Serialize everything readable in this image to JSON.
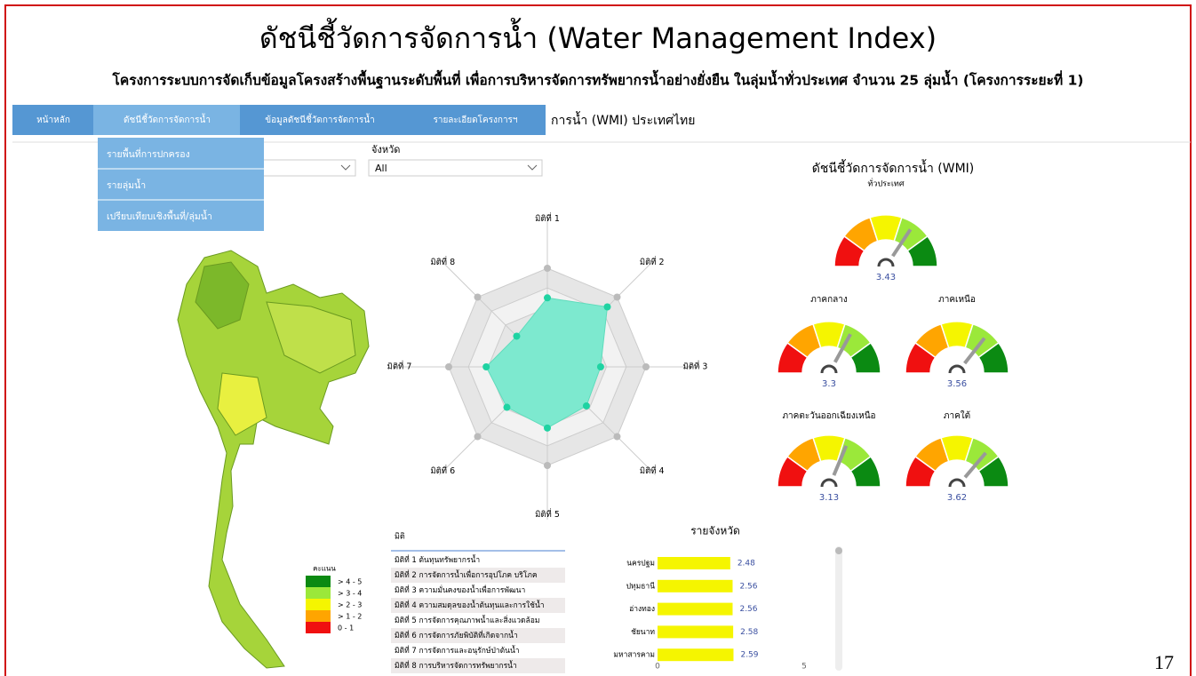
{
  "header": {
    "title": "ดัชนีชี้วัดการจัดการน้ำ (Water Management Index)",
    "subtitle": "โครงการระบบการจัดเก็บข้อมูลโครงสร้างพื้นฐานระดับพื้นที่ เพื่อการบริหารจัดการทรัพยากรน้ำอย่างยั่งยืน ในลุ่มน้ำทั่วประเทศ จำนวน 25 ลุ่มน้ำ (โครงการระยะที่ 1)"
  },
  "nav": {
    "items": [
      "หน้าหลัก",
      "ดัชนีชี้วัดการจัดการน้ำ",
      "ข้อมูลดัชนีชี้วัดการจัดการน้ำ",
      "รายละเอียดโครงการฯ"
    ],
    "dropdown": [
      "รายพื้นที่การปกครอง",
      "รายลุ่มน้ำ",
      "เปรียบเทียบเชิงพื้นที่/ลุ่มน้ำ"
    ],
    "page_title": "การน้ำ (WMI) ประเทศไทย"
  },
  "filter": {
    "label": "จังหวัด",
    "value": "All"
  },
  "map_legend": {
    "title": "คะแนน",
    "items": [
      {
        "label": "> 4 - 5",
        "color": "#0b8a12"
      },
      {
        "label": "> 3 - 4",
        "color": "#9be83a"
      },
      {
        "label": "> 2 - 3",
        "color": "#f5f500"
      },
      {
        "label": "> 1 - 2",
        "color": "#ffa500"
      },
      {
        "label": "0 - 1",
        "color": "#f01010"
      }
    ]
  },
  "radar": {
    "type": "radar",
    "categories": [
      "มิติที่ 1",
      "มิติที่ 2",
      "มิติที่ 3",
      "มิติที่ 4",
      "มิติที่ 5",
      "มิติที่ 6",
      "มิติที่ 7",
      "มิติที่ 8"
    ],
    "values": [
      3.5,
      4.3,
      2.7,
      2.8,
      3.1,
      2.9,
      3.1,
      2.2
    ],
    "rlim": [
      0,
      5
    ],
    "color": "#7de9cf"
  },
  "gauges": {
    "type": "gauge",
    "title": "ดัชนีชี้วัดการจัดการน้ำ (WMI)",
    "glim": [
      0,
      5
    ],
    "items": [
      {
        "name": "ทั่วประเทศ",
        "value": 3.43
      },
      {
        "name": "ภาคกลาง",
        "value": 3.3
      },
      {
        "name": "ภาคเหนือ",
        "value": 3.56
      },
      {
        "name": "ภาคตะวันออกเฉียงเหนือ",
        "value": 3.13
      },
      {
        "name": "ภาคใต้",
        "value": 3.62
      }
    ]
  },
  "dimension_list": {
    "header": "มิติ",
    "items": [
      "มิติที่ 1 ต้นทุนทรัพยากรน้ำ",
      "มิติที่ 2 การจัดการน้ำเพื่อการอุปโภค บริโภค",
      "มิติที่ 3 ความมั่นคงของน้ำเพื่อการพัฒนา",
      "มิติที่ 4 ความสมดุลของน้ำต้นทุนและการใช้น้ำ",
      "มิติที่ 5 การจัดการคุณภาพน้ำและสิ่งแวดล้อม",
      "มิติที่ 6 การจัดการภัยพิบัติที่เกิดจากน้ำ",
      "มิติที่ 7 การจัดการและอนุรักษ์ป่าต้นน้ำ",
      "มิติที่ 8 การบริหารจัดการทรัพยากรน้ำ"
    ]
  },
  "province_bar": {
    "type": "bar",
    "title": "รายจังหวัด",
    "categories": [
      "นครปฐม",
      "ปทุมธานี",
      "อ่างทอง",
      "ชัยนาท",
      "มหาสารคาม"
    ],
    "values": [
      2.48,
      2.56,
      2.56,
      2.58,
      2.59
    ],
    "xlim": [
      0,
      5
    ],
    "xticks": [
      0,
      5
    ],
    "color": "#f5f500"
  },
  "page_number": "17"
}
